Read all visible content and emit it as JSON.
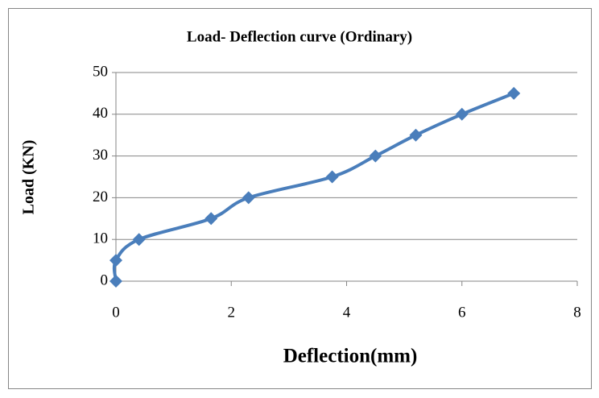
{
  "chart_data": {
    "type": "line",
    "title": "Load- Deflection curve (Ordinary)",
    "x_label": "Deflection(mm)",
    "y_label": "Load (KN)",
    "x": [
      0,
      0,
      0.4,
      1.65,
      2.3,
      3.75,
      4.5,
      5.2,
      6,
      6.9
    ],
    "series": [
      {
        "name": "Load",
        "color": "#4a7ebb",
        "values": [
          0,
          5,
          10,
          15,
          20,
          25,
          30,
          35,
          40,
          45
        ]
      }
    ],
    "xlim": [
      0,
      8
    ],
    "xticks": [
      0,
      2,
      4,
      6,
      8
    ],
    "ylim": [
      0,
      50
    ],
    "yticks": [
      0,
      10,
      20,
      30,
      40,
      50
    ],
    "grid": true
  }
}
